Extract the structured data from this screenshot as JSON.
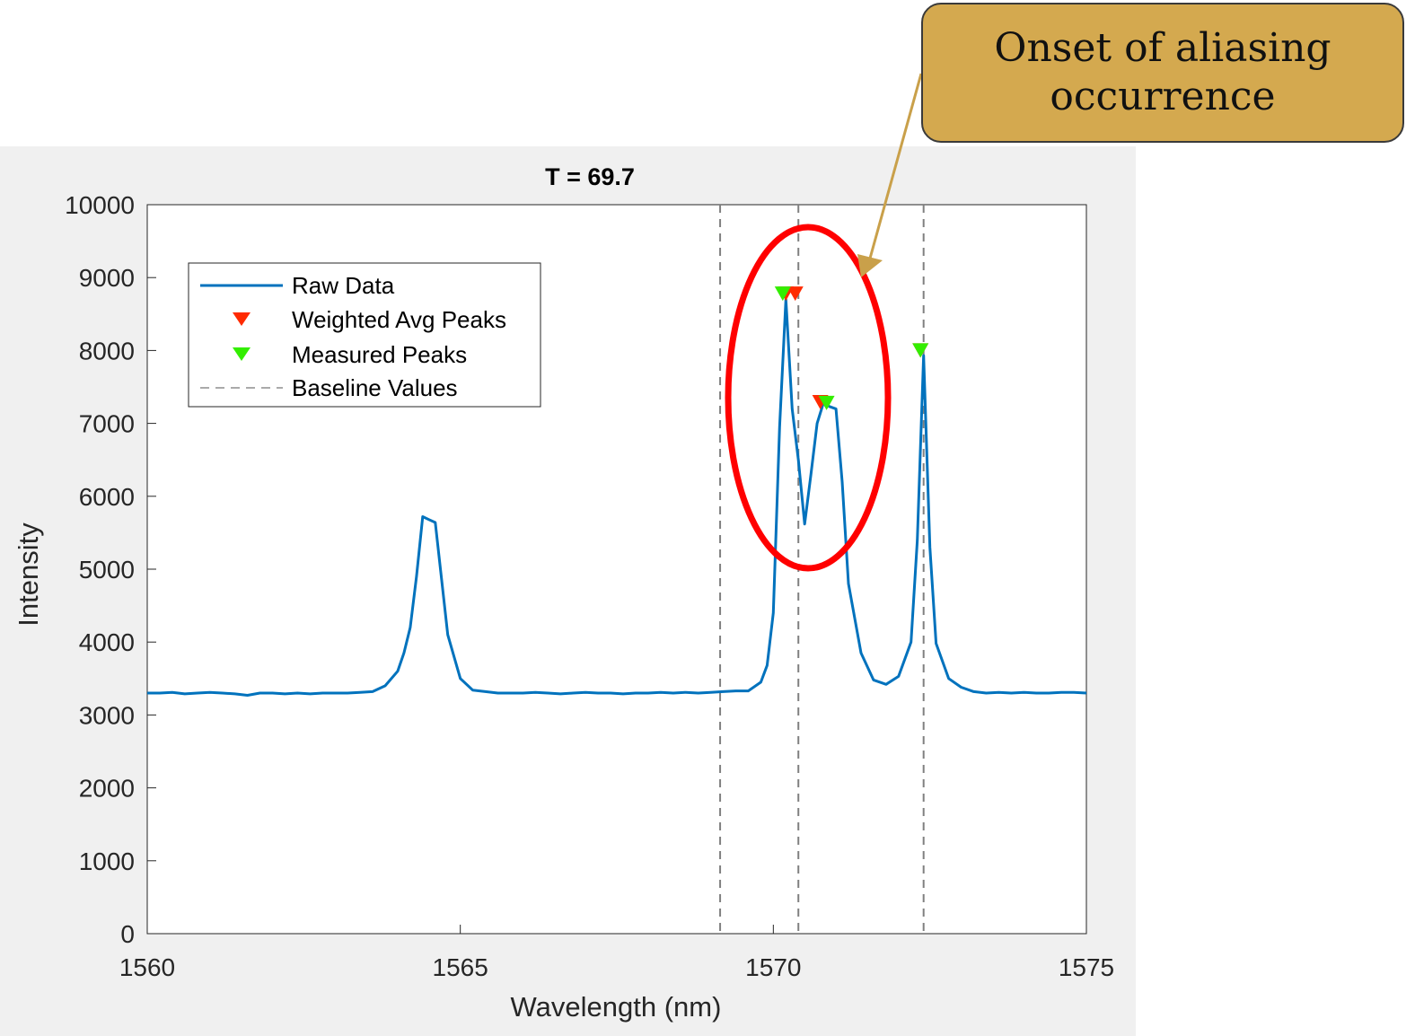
{
  "chart_data": {
    "type": "line",
    "title": "T = 69.7",
    "xlabel": "Wavelength (nm)",
    "ylabel": "Intensity",
    "xlim": [
      1560,
      1575
    ],
    "ylim": [
      0,
      10000
    ],
    "xticks": [
      1560,
      1565,
      1570,
      1575
    ],
    "yticks": [
      0,
      1000,
      2000,
      3000,
      4000,
      5000,
      6000,
      7000,
      8000,
      9000,
      10000
    ],
    "grid": false,
    "legend_position": "top-left",
    "legend": {
      "raw": "Raw Data",
      "weighted": "Weighted Avg Peaks",
      "measured": "Measured Peaks",
      "baseline": "Baseline Values"
    },
    "series": [
      {
        "name": "Raw Data",
        "color": "#0072bd",
        "x": [
          1560.0,
          1560.2,
          1560.4,
          1560.6,
          1560.8,
          1561.0,
          1561.2,
          1561.4,
          1561.6,
          1561.8,
          1562.0,
          1562.2,
          1562.4,
          1562.6,
          1562.8,
          1563.0,
          1563.2,
          1563.4,
          1563.6,
          1563.8,
          1564.0,
          1564.1,
          1564.2,
          1564.3,
          1564.4,
          1564.5,
          1564.6,
          1564.8,
          1565.0,
          1565.2,
          1565.4,
          1565.6,
          1565.8,
          1566.0,
          1566.2,
          1566.4,
          1566.6,
          1566.8,
          1567.0,
          1567.2,
          1567.4,
          1567.6,
          1567.8,
          1568.0,
          1568.2,
          1568.4,
          1568.6,
          1568.8,
          1569.0,
          1569.2,
          1569.4,
          1569.6,
          1569.8,
          1569.9,
          1570.0,
          1570.1,
          1570.2,
          1570.3,
          1570.4,
          1570.5,
          1570.6,
          1570.7,
          1570.8,
          1570.9,
          1571.0,
          1571.1,
          1571.2,
          1571.4,
          1571.6,
          1571.8,
          1572.0,
          1572.2,
          1572.3,
          1572.4,
          1572.5,
          1572.6,
          1572.8,
          1573.0,
          1573.2,
          1573.4,
          1573.6,
          1573.8,
          1574.0,
          1574.2,
          1574.4,
          1574.6,
          1574.8,
          1575.0
        ],
        "y": [
          3300,
          3300,
          3310,
          3290,
          3300,
          3310,
          3300,
          3290,
          3270,
          3300,
          3300,
          3290,
          3300,
          3290,
          3300,
          3300,
          3300,
          3310,
          3320,
          3400,
          3600,
          3850,
          4200,
          4900,
          5720,
          5680,
          5640,
          4100,
          3500,
          3340,
          3320,
          3300,
          3300,
          3300,
          3310,
          3300,
          3290,
          3300,
          3310,
          3300,
          3300,
          3290,
          3300,
          3300,
          3310,
          3300,
          3310,
          3300,
          3310,
          3320,
          3330,
          3330,
          3450,
          3680,
          4400,
          6950,
          8700,
          7200,
          6500,
          5620,
          6300,
          7000,
          7280,
          7230,
          7200,
          6200,
          4800,
          3850,
          3480,
          3420,
          3530,
          4000,
          5400,
          7930,
          5300,
          3980,
          3500,
          3380,
          3320,
          3300,
          3310,
          3300,
          3310,
          3300,
          3300,
          3310,
          3310,
          3300
        ]
      }
    ],
    "weighted_avg_peaks": {
      "color": "#ff0000",
      "x": [
        1570.2,
        1570.35,
        1570.75,
        1572.35
      ],
      "y": [
        8780,
        8780,
        7290,
        8000
      ]
    },
    "measured_peaks": {
      "color": "#00ff00",
      "x": [
        1570.15,
        1570.85,
        1572.35
      ],
      "y": [
        8780,
        7280,
        8000
      ]
    },
    "baseline_values": {
      "color": "#808080",
      "x": [
        1569.15,
        1570.4,
        1572.4
      ]
    },
    "annotation": {
      "text_line1": "Onset of aliasing",
      "text_line2": "occurrence",
      "box_color": "#d4a94f",
      "ellipse_color": "#ff0000",
      "arrow_color": "#c9a04a"
    }
  }
}
